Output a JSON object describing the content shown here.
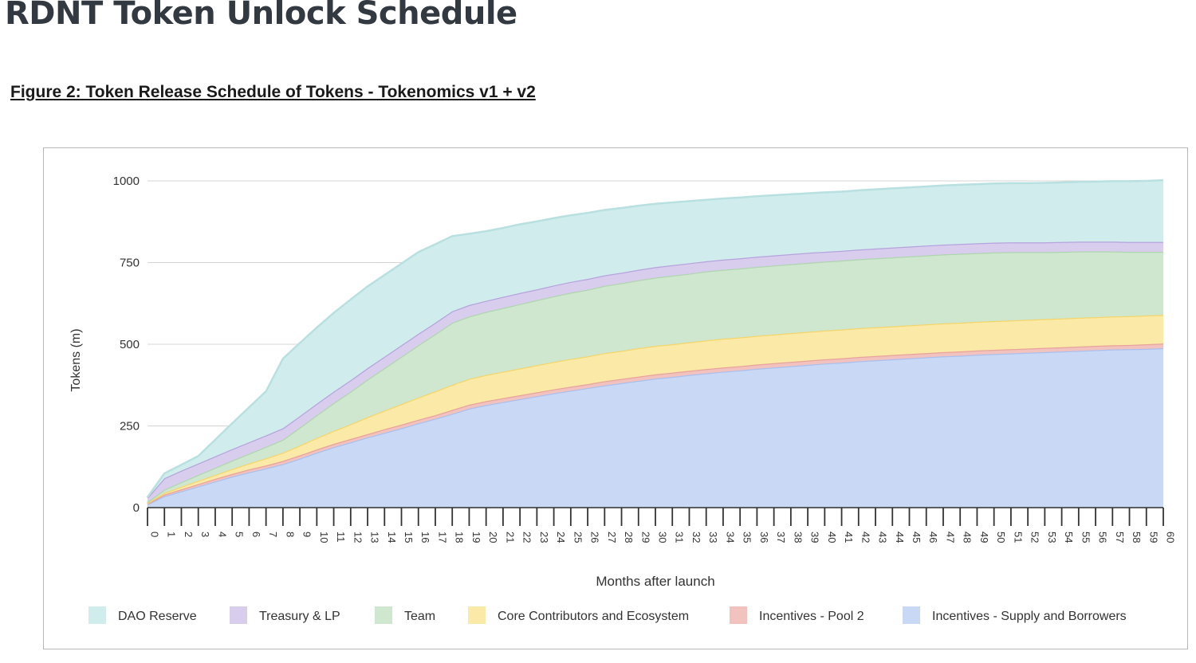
{
  "page": {
    "title": "RDNT Token Unlock Schedule",
    "caption": "Figure 2: Token Release Schedule of Tokens - Tokenomics v1 + v2"
  },
  "chart_data": {
    "type": "area",
    "stacked": true,
    "xlabel": "Months after launch",
    "ylabel": "Tokens (m)",
    "ylim": [
      0,
      1000
    ],
    "yticks": [
      0,
      250,
      500,
      750,
      1000
    ],
    "grid": true,
    "legend_position": "bottom",
    "x": [
      0,
      1,
      2,
      3,
      4,
      5,
      6,
      7,
      8,
      9,
      10,
      11,
      12,
      13,
      14,
      15,
      16,
      17,
      18,
      19,
      20,
      21,
      22,
      23,
      24,
      25,
      26,
      27,
      28,
      29,
      30,
      31,
      32,
      33,
      34,
      35,
      36,
      37,
      38,
      39,
      40,
      41,
      42,
      43,
      44,
      45,
      46,
      47,
      48,
      49,
      50,
      51,
      52,
      53,
      54,
      55,
      56,
      57,
      58,
      59,
      60
    ],
    "series": [
      {
        "name": "Incentives - Supply and Borrowers",
        "color": "#c9d8f5",
        "stroke": "#a9c0ee",
        "values": [
          10,
          35,
          50,
          65,
          80,
          95,
          108,
          120,
          133,
          150,
          168,
          185,
          200,
          215,
          229,
          243,
          258,
          272,
          287,
          303,
          314,
          323,
          332,
          341,
          350,
          358,
          366,
          374,
          381,
          388,
          395,
          400,
          406,
          411,
          416,
          420,
          425,
          429,
          433,
          437,
          441,
          444,
          448,
          451,
          454,
          457,
          460,
          463,
          465,
          468,
          470,
          472,
          474,
          476,
          478,
          480,
          482,
          484,
          485,
          486,
          488
        ]
      },
      {
        "name": "Incentives - Pool 2",
        "color": "#f2c3be",
        "stroke": "#e8a39c",
        "values": [
          2,
          5,
          6,
          7,
          8,
          8,
          9,
          9,
          10,
          10,
          10,
          10,
          10,
          10,
          11,
          11,
          11,
          11,
          12,
          12,
          12,
          12,
          12,
          12,
          12,
          12,
          12,
          13,
          13,
          13,
          13,
          13,
          13,
          13,
          13,
          13,
          13,
          13,
          13,
          13,
          13,
          13,
          13,
          13,
          13,
          13,
          13,
          13,
          13,
          13,
          13,
          13,
          13,
          13,
          13,
          13,
          13,
          13,
          13,
          14,
          14
        ]
      },
      {
        "name": "Core Contributors and Ecosystem",
        "color": "#fbe9a8",
        "stroke": "#f5d56a",
        "values": [
          2,
          5,
          8,
          10,
          12,
          15,
          18,
          22,
          25,
          30,
          35,
          40,
          45,
          52,
          57,
          63,
          68,
          73,
          77,
          79,
          80,
          81,
          82,
          83,
          84,
          85,
          85,
          86,
          86,
          87,
          87,
          87,
          87,
          88,
          88,
          88,
          88,
          88,
          88,
          88,
          88,
          88,
          88,
          88,
          88,
          88,
          88,
          88,
          88,
          88,
          88,
          88,
          88,
          88,
          88,
          88,
          88,
          88,
          88,
          88,
          88
        ]
      },
      {
        "name": "Team",
        "color": "#cfe6cf",
        "stroke": "#aed6ae",
        "values": [
          3,
          10,
          14,
          18,
          22,
          26,
          30,
          35,
          40,
          55,
          70,
          85,
          100,
          115,
          130,
          145,
          160,
          175,
          190,
          191,
          193,
          195,
          197,
          199,
          201,
          203,
          204,
          206,
          207,
          208,
          209,
          210,
          210,
          211,
          211,
          211,
          211,
          211,
          211,
          211,
          211,
          211,
          211,
          211,
          211,
          211,
          211,
          211,
          211,
          210,
          210,
          209,
          207,
          205,
          204,
          203,
          201,
          199,
          197,
          195,
          193
        ]
      },
      {
        "name": "Treasury & LP",
        "color": "#d9cdee",
        "stroke": "#b6a3dd",
        "values": [
          13,
          35,
          35,
          35,
          35,
          35,
          35,
          35,
          35,
          35,
          35,
          35,
          35,
          35,
          35,
          35,
          35,
          35,
          35,
          35,
          34,
          34,
          34,
          33,
          33,
          33,
          33,
          32,
          32,
          32,
          32,
          32,
          32,
          31,
          31,
          31,
          31,
          31,
          31,
          31,
          30,
          30,
          30,
          30,
          30,
          30,
          30,
          30,
          30,
          30,
          30,
          30,
          30,
          30,
          30,
          30,
          30,
          30,
          30,
          30,
          30
        ]
      },
      {
        "name": "DAO Reserve",
        "color": "#d0ecec",
        "stroke": "#b9e0e0",
        "values": [
          2,
          15,
          18,
          23,
          51,
          79,
          107,
          135,
          213,
          224,
          233,
          241,
          247,
          250,
          250,
          250,
          250,
          240,
          230,
          218,
          213,
          211,
          210,
          208,
          206,
          204,
          202,
          200,
          198,
          196,
          194,
          192,
          190,
          188,
          187,
          186,
          185,
          184,
          183,
          182,
          182,
          181,
          181,
          181,
          181,
          181,
          181,
          181,
          181,
          181,
          181,
          181,
          181,
          182,
          182,
          183,
          184,
          185,
          186,
          187,
          189
        ]
      }
    ]
  }
}
